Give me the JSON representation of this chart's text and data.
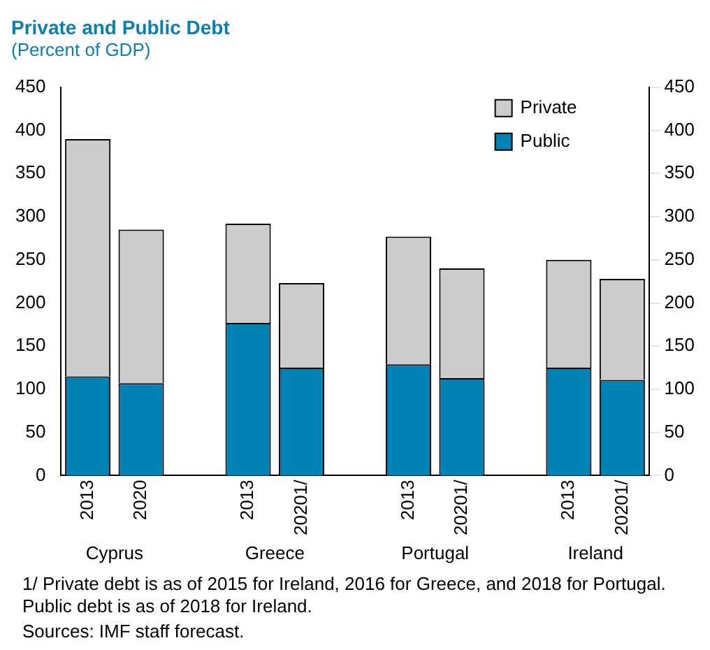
{
  "chart_data": {
    "type": "bar",
    "title": "Private and Public Debt",
    "subtitle": "(Percent of GDP)",
    "categories": [
      "2013",
      "2020",
      null,
      "2013",
      "20201/",
      null,
      "2013",
      "20201/",
      null,
      "2013",
      "20201/"
    ],
    "stacked": true,
    "series": [
      {
        "name": "Public",
        "color": "#0082b4",
        "values": [
          115,
          107,
          null,
          177,
          125,
          null,
          129,
          113,
          null,
          125,
          111
        ]
      },
      {
        "name": "Private",
        "color": "#cccccc",
        "values": [
          275,
          178,
          null,
          115,
          98,
          null,
          148,
          127,
          null,
          125,
          117
        ]
      }
    ],
    "ylim": [
      0,
      450
    ],
    "yticks": [
      0,
      50,
      100,
      150,
      200,
      250,
      300,
      350,
      400,
      450
    ],
    "y2lim": [
      0,
      450
    ],
    "y2ticks": [
      0,
      50,
      100,
      150,
      200,
      250,
      300,
      350,
      400,
      450
    ],
    "legend": "top right",
    "grid": false,
    "annotations": [
      "Cyprus",
      "Greece",
      "Portugal",
      "Ireland",
      "1/ Private debt is as of 2015 for Ireland, 2016 for Greece, and 2018 for Portugal.  Public debt is as of 2018 for Ireland.",
      "Sources: IMF staff forecast."
    ]
  }
}
